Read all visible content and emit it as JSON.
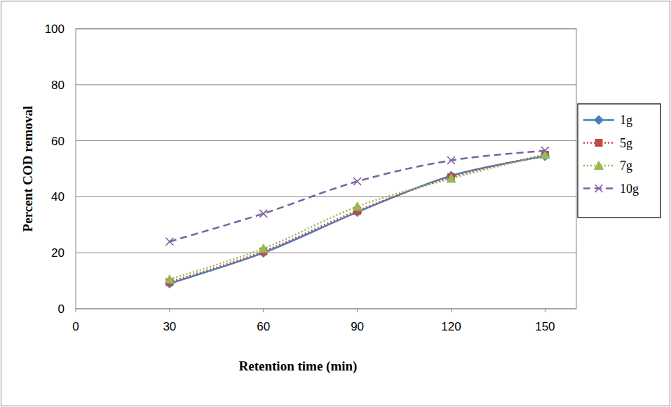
{
  "chart_data": {
    "type": "line",
    "x_label": "Retention time (min)",
    "y_label": "Percent COD removal",
    "x": [
      30,
      60,
      90,
      120,
      150
    ],
    "xlim": [
      0,
      160
    ],
    "xticks": [
      0,
      30,
      60,
      90,
      120,
      150
    ],
    "ylim": [
      0,
      100
    ],
    "yticks": [
      0,
      20,
      40,
      60,
      80,
      100
    ],
    "grid": true,
    "legend": "right",
    "series": [
      {
        "name": "1g",
        "color": "#4a7ebb",
        "marker": "diamond",
        "line_style": "solid",
        "values": [
          9,
          20,
          34.5,
          47.5,
          54.5
        ]
      },
      {
        "name": "5g",
        "color": "#be4b48",
        "marker": "square",
        "line_style": "dotted",
        "values": [
          9.5,
          20.5,
          35,
          47,
          55
        ]
      },
      {
        "name": "7g",
        "color": "#98b954",
        "marker": "triangle",
        "line_style": "dotted",
        "values": [
          10.5,
          21.5,
          36.5,
          46.5,
          55
        ]
      },
      {
        "name": "10g",
        "color": "#7d60a0",
        "marker": "x",
        "line_style": "dashed",
        "values": [
          24,
          34,
          45.5,
          53,
          56.5
        ]
      }
    ]
  }
}
